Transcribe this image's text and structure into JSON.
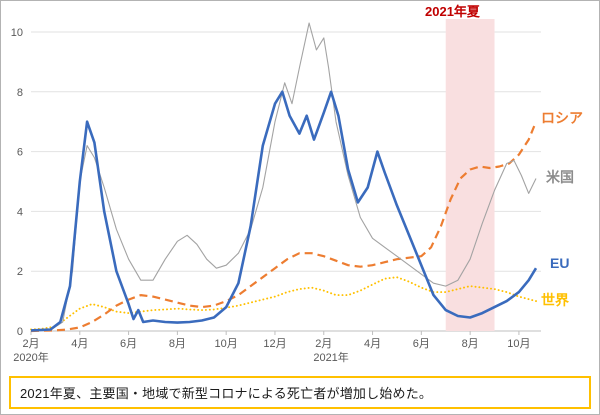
{
  "annotations": {
    "summer_label": "2021年夏",
    "caption": "2021年夏、主要国・地域で新型コロナによる死亡者が増加し始めた。"
  },
  "series_labels": {
    "russia": "ロシア",
    "usa": "米国",
    "eu": "EU",
    "world": "世界"
  },
  "colors": {
    "eu": "#3a6bbd",
    "usa": "#a3a3a3",
    "russia": "#ed7d31",
    "world": "#ffc000",
    "summer_label": "#c00000",
    "band": "#f9dfe0",
    "caption_border": "#ffc000",
    "axis_text": "#595959",
    "grid": "#e2e2e2",
    "baseline": "#bfbfbf"
  },
  "chart_data": {
    "type": "line",
    "title": "",
    "ylabel": "",
    "xlabel": "",
    "ylim": [
      0,
      10.5
    ],
    "y_ticks": [
      0,
      2,
      4,
      6,
      8,
      10
    ],
    "x_range": [
      0,
      20.7
    ],
    "x_ticks": [
      {
        "x": 0,
        "label": "2月"
      },
      {
        "x": 2,
        "label": "4月"
      },
      {
        "x": 4,
        "label": "6月"
      },
      {
        "x": 6,
        "label": "8月"
      },
      {
        "x": 8,
        "label": "10月"
      },
      {
        "x": 10,
        "label": "12月"
      },
      {
        "x": 12,
        "label": "2月"
      },
      {
        "x": 14,
        "label": "4月"
      },
      {
        "x": 16,
        "label": "6月"
      },
      {
        "x": 18,
        "label": "8月"
      },
      {
        "x": 20,
        "label": "10月"
      }
    ],
    "year_labels": [
      {
        "x": 0,
        "label": "2020年"
      },
      {
        "x": 12.3,
        "label": "2021年"
      }
    ],
    "highlight_band": {
      "x0": 17.0,
      "x1": 19.0,
      "label": "2021年夏"
    },
    "legend_position": "right-of-lines",
    "grid": true,
    "series": [
      {
        "name": "世界",
        "color_key": "world",
        "style": "dotted",
        "width": 1.9,
        "points": [
          [
            0,
            0.05
          ],
          [
            0.5,
            0.08
          ],
          [
            1,
            0.15
          ],
          [
            1.5,
            0.45
          ],
          [
            2,
            0.75
          ],
          [
            2.5,
            0.9
          ],
          [
            3,
            0.8
          ],
          [
            3.5,
            0.65
          ],
          [
            4,
            0.6
          ],
          [
            4.5,
            0.65
          ],
          [
            5,
            0.7
          ],
          [
            5.5,
            0.72
          ],
          [
            6,
            0.75
          ],
          [
            6.5,
            0.72
          ],
          [
            7,
            0.7
          ],
          [
            7.5,
            0.72
          ],
          [
            8,
            0.78
          ],
          [
            8.5,
            0.85
          ],
          [
            9,
            0.95
          ],
          [
            9.5,
            1.05
          ],
          [
            10,
            1.15
          ],
          [
            10.5,
            1.3
          ],
          [
            11,
            1.4
          ],
          [
            11.5,
            1.45
          ],
          [
            12,
            1.35
          ],
          [
            12.5,
            1.2
          ],
          [
            13,
            1.2
          ],
          [
            13.5,
            1.35
          ],
          [
            14,
            1.55
          ],
          [
            14.5,
            1.75
          ],
          [
            15,
            1.8
          ],
          [
            15.5,
            1.65
          ],
          [
            16,
            1.45
          ],
          [
            16.5,
            1.3
          ],
          [
            17,
            1.3
          ],
          [
            17.5,
            1.4
          ],
          [
            18,
            1.5
          ],
          [
            18.5,
            1.45
          ],
          [
            19,
            1.4
          ],
          [
            19.5,
            1.3
          ],
          [
            20,
            1.15
          ],
          [
            20.7,
            1.0
          ]
        ]
      },
      {
        "name": "ロシア",
        "color_key": "russia",
        "style": "dashed",
        "width": 2.2,
        "points": [
          [
            0,
            0.0
          ],
          [
            1,
            0.02
          ],
          [
            1.5,
            0.05
          ],
          [
            2,
            0.12
          ],
          [
            2.5,
            0.3
          ],
          [
            3,
            0.55
          ],
          [
            3.5,
            0.85
          ],
          [
            4,
            1.05
          ],
          [
            4.5,
            1.2
          ],
          [
            5,
            1.15
          ],
          [
            5.5,
            1.05
          ],
          [
            6,
            0.95
          ],
          [
            6.5,
            0.85
          ],
          [
            7,
            0.8
          ],
          [
            7.5,
            0.85
          ],
          [
            8,
            1.0
          ],
          [
            8.5,
            1.2
          ],
          [
            9,
            1.5
          ],
          [
            9.5,
            1.8
          ],
          [
            10,
            2.1
          ],
          [
            10.5,
            2.4
          ],
          [
            11,
            2.6
          ],
          [
            11.5,
            2.6
          ],
          [
            12,
            2.5
          ],
          [
            12.5,
            2.35
          ],
          [
            13,
            2.2
          ],
          [
            13.5,
            2.15
          ],
          [
            14,
            2.2
          ],
          [
            14.5,
            2.3
          ],
          [
            15,
            2.4
          ],
          [
            15.5,
            2.45
          ],
          [
            16,
            2.5
          ],
          [
            16.4,
            2.8
          ],
          [
            16.8,
            3.5
          ],
          [
            17.2,
            4.4
          ],
          [
            17.6,
            5.1
          ],
          [
            18,
            5.4
          ],
          [
            18.4,
            5.5
          ],
          [
            18.8,
            5.45
          ],
          [
            19.2,
            5.5
          ],
          [
            19.6,
            5.6
          ],
          [
            20,
            5.9
          ],
          [
            20.4,
            6.4
          ],
          [
            20.7,
            7.0
          ]
        ]
      },
      {
        "name": "米国",
        "color_key": "usa",
        "style": "solid",
        "width": 1.1,
        "points": [
          [
            0,
            0.0
          ],
          [
            0.8,
            0.03
          ],
          [
            1.3,
            0.3
          ],
          [
            1.7,
            2.0
          ],
          [
            2,
            5.0
          ],
          [
            2.3,
            6.2
          ],
          [
            2.6,
            5.8
          ],
          [
            3,
            4.8
          ],
          [
            3.5,
            3.4
          ],
          [
            4,
            2.4
          ],
          [
            4.5,
            1.7
          ],
          [
            5,
            1.7
          ],
          [
            5.5,
            2.4
          ],
          [
            6,
            3.0
          ],
          [
            6.4,
            3.2
          ],
          [
            6.8,
            2.9
          ],
          [
            7.2,
            2.4
          ],
          [
            7.6,
            2.1
          ],
          [
            8,
            2.2
          ],
          [
            8.5,
            2.6
          ],
          [
            9,
            3.4
          ],
          [
            9.5,
            4.8
          ],
          [
            10,
            7.0
          ],
          [
            10.4,
            8.3
          ],
          [
            10.7,
            7.6
          ],
          [
            11,
            8.8
          ],
          [
            11.4,
            10.3
          ],
          [
            11.7,
            9.4
          ],
          [
            12,
            9.8
          ],
          [
            12.2,
            8.8
          ],
          [
            12.5,
            7.0
          ],
          [
            13,
            5.2
          ],
          [
            13.5,
            3.8
          ],
          [
            14,
            3.1
          ],
          [
            14.5,
            2.8
          ],
          [
            15,
            2.5
          ],
          [
            15.5,
            2.2
          ],
          [
            16,
            1.9
          ],
          [
            16.5,
            1.6
          ],
          [
            17,
            1.5
          ],
          [
            17.5,
            1.7
          ],
          [
            18,
            2.4
          ],
          [
            18.5,
            3.6
          ],
          [
            19,
            4.7
          ],
          [
            19.5,
            5.6
          ],
          [
            19.8,
            5.7
          ],
          [
            20.1,
            5.2
          ],
          [
            20.4,
            4.6
          ],
          [
            20.7,
            5.1
          ]
        ]
      },
      {
        "name": "EU",
        "color_key": "eu",
        "style": "solid",
        "width": 2.6,
        "points": [
          [
            0,
            0.02
          ],
          [
            0.8,
            0.05
          ],
          [
            1.2,
            0.3
          ],
          [
            1.6,
            1.5
          ],
          [
            2,
            5.0
          ],
          [
            2.3,
            7.0
          ],
          [
            2.6,
            6.3
          ],
          [
            3,
            4.0
          ],
          [
            3.5,
            2.0
          ],
          [
            4,
            0.9
          ],
          [
            4.2,
            0.4
          ],
          [
            4.4,
            0.7
          ],
          [
            4.6,
            0.3
          ],
          [
            5,
            0.35
          ],
          [
            5.5,
            0.3
          ],
          [
            6,
            0.28
          ],
          [
            6.5,
            0.3
          ],
          [
            7,
            0.35
          ],
          [
            7.5,
            0.45
          ],
          [
            8,
            0.8
          ],
          [
            8.5,
            1.6
          ],
          [
            9,
            3.5
          ],
          [
            9.5,
            6.2
          ],
          [
            10,
            7.6
          ],
          [
            10.3,
            8.0
          ],
          [
            10.6,
            7.2
          ],
          [
            11,
            6.6
          ],
          [
            11.3,
            7.2
          ],
          [
            11.6,
            6.4
          ],
          [
            12,
            7.3
          ],
          [
            12.3,
            8.0
          ],
          [
            12.6,
            7.2
          ],
          [
            13,
            5.4
          ],
          [
            13.4,
            4.3
          ],
          [
            13.8,
            4.8
          ],
          [
            14.2,
            6.0
          ],
          [
            14.5,
            5.3
          ],
          [
            15,
            4.2
          ],
          [
            15.5,
            3.2
          ],
          [
            16,
            2.2
          ],
          [
            16.5,
            1.2
          ],
          [
            17,
            0.7
          ],
          [
            17.5,
            0.5
          ],
          [
            18,
            0.45
          ],
          [
            18.5,
            0.6
          ],
          [
            19,
            0.8
          ],
          [
            19.5,
            1.0
          ],
          [
            20,
            1.3
          ],
          [
            20.4,
            1.7
          ],
          [
            20.7,
            2.1
          ]
        ]
      }
    ]
  }
}
